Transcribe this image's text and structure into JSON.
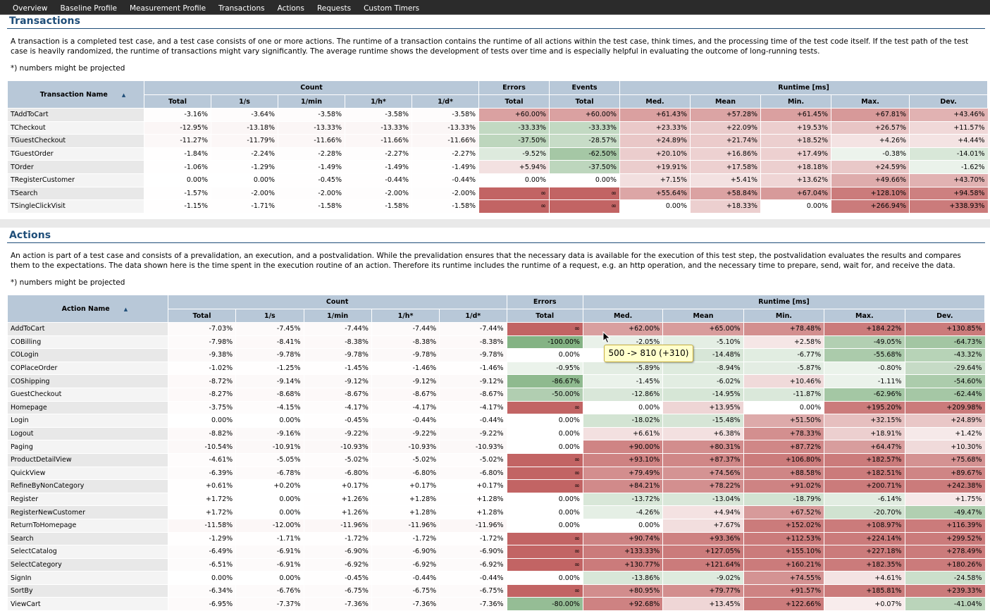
{
  "nav": [
    "Overview",
    "Baseline Profile",
    "Measurement Profile",
    "Transactions",
    "Actions",
    "Requests",
    "Custom Timers"
  ],
  "transactions": {
    "title": "Transactions",
    "description": "A transaction is a completed test case, and a test case consists of one or more actions. The runtime of a transaction contains the runtime of all actions within the test case, think times, and the processing time of the test code itself. If the test path of the test case is heavily randomized, the runtime of transactions might vary significantly. The average runtime shows the development of tests over time and is especially helpful in evaluating the outcome of long-running tests.",
    "note": "*) numbers might be projected",
    "name_header": "Transaction Name",
    "group_headers": [
      "Count",
      "Errors",
      "Events",
      "Runtime [ms]"
    ],
    "columns": [
      "Total",
      "1/s",
      "1/min",
      "1/h*",
      "1/d*",
      "Total",
      "Total",
      "Med.",
      "Mean",
      "Min.",
      "Max.",
      "Dev."
    ],
    "rows": [
      {
        "name": "TAddToCart",
        "cells": [
          "-3.16%",
          "-3.64%",
          "-3.58%",
          "-3.58%",
          "-3.58%",
          "+60.00%",
          "+60.00%",
          "+61.43%",
          "+57.28%",
          "+61.45%",
          "+67.81%",
          "+43.46%"
        ]
      },
      {
        "name": "TCheckout",
        "cells": [
          "-12.95%",
          "-13.18%",
          "-13.33%",
          "-13.33%",
          "-13.33%",
          "-33.33%",
          "-33.33%",
          "+23.33%",
          "+22.09%",
          "+19.53%",
          "+26.57%",
          "+11.57%"
        ]
      },
      {
        "name": "TGuestCheckout",
        "cells": [
          "-11.27%",
          "-11.79%",
          "-11.66%",
          "-11.66%",
          "-11.66%",
          "-37.50%",
          "-28.57%",
          "+24.89%",
          "+21.74%",
          "+18.52%",
          "+4.26%",
          "+4.44%"
        ]
      },
      {
        "name": "TGuestOrder",
        "cells": [
          "-1.84%",
          "-2.24%",
          "-2.28%",
          "-2.27%",
          "-2.27%",
          "-9.52%",
          "-62.50%",
          "+20.10%",
          "+16.86%",
          "+17.49%",
          "-0.38%",
          "-14.01%"
        ]
      },
      {
        "name": "TOrder",
        "cells": [
          "-1.06%",
          "-1.29%",
          "-1.49%",
          "-1.49%",
          "-1.49%",
          "+5.94%",
          "-37.50%",
          "+19.91%",
          "+17.58%",
          "+18.18%",
          "+24.59%",
          "-1.62%"
        ]
      },
      {
        "name": "TRegisterCustomer",
        "cells": [
          "0.00%",
          "0.00%",
          "-0.45%",
          "-0.44%",
          "-0.44%",
          "0.00%",
          "0.00%",
          "+7.15%",
          "+5.41%",
          "+13.62%",
          "+49.66%",
          "+43.70%"
        ]
      },
      {
        "name": "TSearch",
        "cells": [
          "-1.57%",
          "-2.00%",
          "-2.00%",
          "-2.00%",
          "-2.00%",
          "∞",
          "∞",
          "+55.64%",
          "+58.84%",
          "+67.04%",
          "+128.10%",
          "+94.58%"
        ]
      },
      {
        "name": "TSingleClickVisit",
        "cells": [
          "-1.15%",
          "-1.71%",
          "-1.58%",
          "-1.58%",
          "-1.58%",
          "∞",
          "∞",
          "0.00%",
          "+18.33%",
          "0.00%",
          "+266.94%",
          "+338.93%"
        ]
      }
    ]
  },
  "actions": {
    "title": "Actions",
    "description": "An action is part of a test case and consists of a prevalidation, an execution, and a postvalidation. While the prevalidation ensures that the necessary data is available for the execution of this test step, the postvalidation evaluates the results and compares them to the expectations. The data shown here is the time spent in the execution routine of an action. Therefore its runtime includes the runtime of a request, e.g. an http operation, and the necessary time to prepare, send, wait for, and receive the data.",
    "note": "*) numbers might be projected",
    "name_header": "Action Name",
    "group_headers": [
      "Count",
      "Errors",
      "Runtime [ms]"
    ],
    "columns": [
      "Total",
      "1/s",
      "1/min",
      "1/h*",
      "1/d*",
      "Total",
      "Med.",
      "Mean",
      "Min.",
      "Max.",
      "Dev."
    ],
    "rows": [
      {
        "name": "AddToCart",
        "cells": [
          "-7.03%",
          "-7.45%",
          "-7.44%",
          "-7.44%",
          "-7.44%",
          "∞",
          "+62.00%",
          "+65.00%",
          "+78.48%",
          "+184.22%",
          "+130.85%"
        ]
      },
      {
        "name": "COBilling",
        "cells": [
          "-7.98%",
          "-8.41%",
          "-8.38%",
          "-8.38%",
          "-8.38%",
          "-100.00%",
          "-2.05%",
          "-5.10%",
          "+2.58%",
          "-49.05%",
          "-64.73%"
        ]
      },
      {
        "name": "COLogin",
        "cells": [
          "-9.38%",
          "-9.78%",
          "-9.78%",
          "-9.78%",
          "-9.78%",
          "0.00%",
          "",
          "-14.48%",
          "-6.77%",
          "-55.68%",
          "-43.32%"
        ]
      },
      {
        "name": "COPlaceOrder",
        "cells": [
          "-1.02%",
          "-1.25%",
          "-1.45%",
          "-1.46%",
          "-1.46%",
          "-0.95%",
          "-5.89%",
          "-8.94%",
          "-5.87%",
          "-0.80%",
          "-29.64%"
        ]
      },
      {
        "name": "COShipping",
        "cells": [
          "-8.72%",
          "-9.14%",
          "-9.12%",
          "-9.12%",
          "-9.12%",
          "-86.67%",
          "-1.45%",
          "-6.02%",
          "+10.46%",
          "-1.11%",
          "-54.60%"
        ]
      },
      {
        "name": "GuestCheckout",
        "cells": [
          "-8.27%",
          "-8.68%",
          "-8.67%",
          "-8.67%",
          "-8.67%",
          "-50.00%",
          "-12.86%",
          "-14.95%",
          "-11.87%",
          "-62.96%",
          "-62.44%"
        ]
      },
      {
        "name": "Homepage",
        "cells": [
          "-3.75%",
          "-4.15%",
          "-4.17%",
          "-4.17%",
          "-4.17%",
          "∞",
          "0.00%",
          "+13.95%",
          "0.00%",
          "+195.20%",
          "+209.98%"
        ]
      },
      {
        "name": "Login",
        "cells": [
          "0.00%",
          "0.00%",
          "-0.45%",
          "-0.44%",
          "-0.44%",
          "0.00%",
          "-18.02%",
          "-15.48%",
          "+51.50%",
          "+32.15%",
          "+24.89%"
        ]
      },
      {
        "name": "Logout",
        "cells": [
          "-8.82%",
          "-9.16%",
          "-9.22%",
          "-9.22%",
          "-9.22%",
          "0.00%",
          "+6.61%",
          "+6.38%",
          "+78.33%",
          "+18.91%",
          "+1.42%"
        ]
      },
      {
        "name": "Paging",
        "cells": [
          "-10.54%",
          "-10.91%",
          "-10.93%",
          "-10.93%",
          "-10.93%",
          "0.00%",
          "+90.00%",
          "+80.31%",
          "+87.72%",
          "+64.47%",
          "+10.30%"
        ]
      },
      {
        "name": "ProductDetailView",
        "cells": [
          "-4.61%",
          "-5.05%",
          "-5.02%",
          "-5.02%",
          "-5.02%",
          "∞",
          "+93.10%",
          "+87.37%",
          "+106.80%",
          "+182.57%",
          "+75.68%"
        ]
      },
      {
        "name": "QuickView",
        "cells": [
          "-6.39%",
          "-6.78%",
          "-6.80%",
          "-6.80%",
          "-6.80%",
          "∞",
          "+79.49%",
          "+74.56%",
          "+88.58%",
          "+182.51%",
          "+89.67%"
        ]
      },
      {
        "name": "RefineByNonCategory",
        "cells": [
          "+0.61%",
          "+0.20%",
          "+0.17%",
          "+0.17%",
          "+0.17%",
          "∞",
          "+84.21%",
          "+78.22%",
          "+91.02%",
          "+200.71%",
          "+242.38%"
        ]
      },
      {
        "name": "Register",
        "cells": [
          "+1.72%",
          "0.00%",
          "+1.26%",
          "+1.28%",
          "+1.28%",
          "0.00%",
          "-13.72%",
          "-13.04%",
          "-18.79%",
          "-6.14%",
          "+1.75%"
        ]
      },
      {
        "name": "RegisterNewCustomer",
        "cells": [
          "+1.72%",
          "0.00%",
          "+1.26%",
          "+1.28%",
          "+1.28%",
          "0.00%",
          "-4.26%",
          "+4.94%",
          "+67.52%",
          "-20.70%",
          "-49.47%"
        ]
      },
      {
        "name": "ReturnToHomepage",
        "cells": [
          "-11.58%",
          "-12.00%",
          "-11.96%",
          "-11.96%",
          "-11.96%",
          "0.00%",
          "0.00%",
          "+7.67%",
          "+152.02%",
          "+108.97%",
          "+116.39%"
        ]
      },
      {
        "name": "Search",
        "cells": [
          "-1.29%",
          "-1.71%",
          "-1.72%",
          "-1.72%",
          "-1.72%",
          "∞",
          "+90.74%",
          "+93.36%",
          "+112.53%",
          "+224.14%",
          "+299.52%"
        ]
      },
      {
        "name": "SelectCatalog",
        "cells": [
          "-6.49%",
          "-6.91%",
          "-6.90%",
          "-6.90%",
          "-6.90%",
          "∞",
          "+133.33%",
          "+127.05%",
          "+155.10%",
          "+227.18%",
          "+278.49%"
        ]
      },
      {
        "name": "SelectCategory",
        "cells": [
          "-6.51%",
          "-6.91%",
          "-6.92%",
          "-6.92%",
          "-6.92%",
          "∞",
          "+130.77%",
          "+121.64%",
          "+160.21%",
          "+182.35%",
          "+180.26%"
        ]
      },
      {
        "name": "SignIn",
        "cells": [
          "0.00%",
          "0.00%",
          "-0.45%",
          "-0.44%",
          "-0.44%",
          "0.00%",
          "-13.86%",
          "-9.02%",
          "+74.55%",
          "+4.61%",
          "-24.58%"
        ]
      },
      {
        "name": "SortBy",
        "cells": [
          "-6.34%",
          "-6.76%",
          "-6.75%",
          "-6.75%",
          "-6.75%",
          "∞",
          "+80.95%",
          "+79.77%",
          "+91.57%",
          "+185.81%",
          "+239.33%"
        ]
      },
      {
        "name": "ViewCart",
        "cells": [
          "-6.95%",
          "-7.37%",
          "-7.36%",
          "-7.36%",
          "-7.36%",
          "-80.00%",
          "+92.68%",
          "+13.45%",
          "+122.66%",
          "+0.07%",
          "-41.04%"
        ]
      }
    ]
  },
  "tooltip": "500 -> 810 (+310)",
  "colors": {
    "positive": "#c85a5a",
    "negative": "#4e9a4e",
    "header": "#b8c8d8",
    "heading": "#1f4e79"
  }
}
